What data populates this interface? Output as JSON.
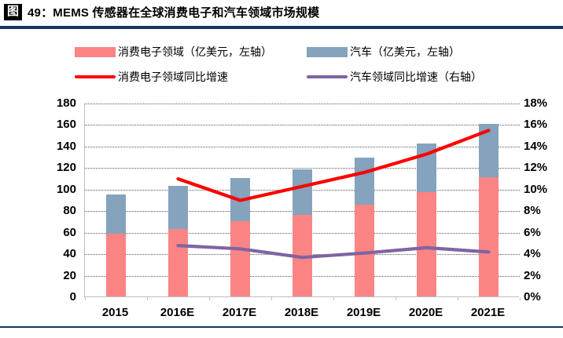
{
  "title": {
    "badge": "图",
    "text": "49：MEMS 传感器在全球消费电子和汽车领域市场规模"
  },
  "colors": {
    "rule_navy": "#17375E",
    "consumer_bar": "#FB8484",
    "auto_bar": "#85A3BD",
    "consumer_growth_line": "#FE0000",
    "auto_growth_line": "#8064A2",
    "gridline": "#595959",
    "axis_line": "#BFBFBF",
    "text": "#000000"
  },
  "chart_data": {
    "type": "combo-stacked-bar-line",
    "title": "MEMS 传感器在全球消费电子和汽车领域市场规模",
    "categories": [
      "2015",
      "2016E",
      "2017E",
      "2018E",
      "2019E",
      "2020E",
      "2021E"
    ],
    "bar_series": [
      {
        "name": "消费电子领域（亿美元，左轴）",
        "color": "#FB8484",
        "axis": "left",
        "values": [
          58,
          63,
          70,
          76,
          85,
          97,
          111
        ]
      },
      {
        "name": "汽车（亿美元，左轴）",
        "color": "#85A3BD",
        "axis": "left",
        "values": [
          37,
          40,
          40,
          42,
          44,
          45,
          49
        ]
      }
    ],
    "line_series": [
      {
        "name": "消费电子领域同比增速",
        "color": "#FE0000",
        "axis": "right",
        "unit": "%",
        "values": [
          null,
          11.0,
          9.0,
          10.3,
          11.6,
          13.3,
          15.5
        ]
      },
      {
        "name": "汽车领域同比增速（右轴）",
        "color": "#8064A2",
        "axis": "right",
        "unit": "%",
        "values": [
          null,
          4.8,
          4.5,
          3.7,
          4.1,
          4.6,
          4.2
        ]
      }
    ],
    "left_axis": {
      "min": 0,
      "max": 180,
      "step": 20,
      "ticks": [
        "180",
        "160",
        "140",
        "120",
        "100",
        "80",
        "60",
        "40",
        "20",
        "0"
      ]
    },
    "right_axis": {
      "min": 0,
      "max": 18,
      "step": 2,
      "suffix": "%",
      "ticks": [
        "18%",
        "16%",
        "14%",
        "12%",
        "10%",
        "8%",
        "6%",
        "4%",
        "2%",
        "0%"
      ]
    },
    "grid": true,
    "legend_position": "top"
  }
}
